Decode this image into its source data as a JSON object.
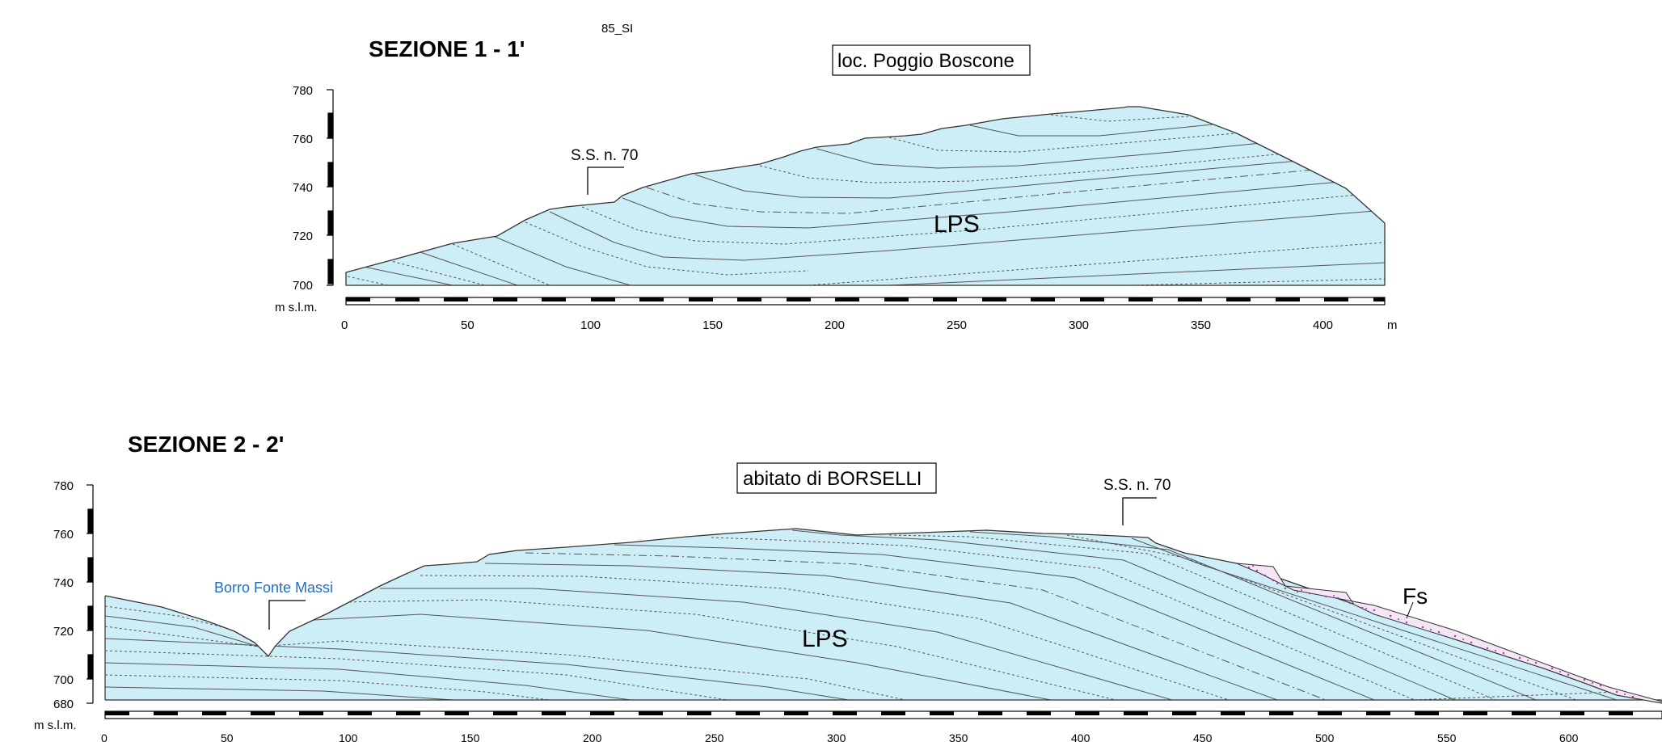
{
  "sheet_code": "85_SI",
  "sections": [
    {
      "title": "SEZIONE 1 - 1'",
      "locality": "loc. Poggio Boscone",
      "road_label": "S.S. n. 70",
      "unit_label": "LPS",
      "y_unit": "m s.l.m.",
      "x_unit": "m",
      "y_ticks": [
        "780",
        "760",
        "740",
        "720",
        "700"
      ],
      "x_ticks": [
        "0",
        "50",
        "100",
        "150",
        "200",
        "250",
        "300",
        "350",
        "400"
      ]
    },
    {
      "title": "SEZIONE 2 - 2'",
      "locality": "abitato di BORSELLI",
      "road_label": "S.S. n. 70",
      "stream_label": "Borro Fonte Massi",
      "unit_label": "LPS",
      "deposit_label": "Fs",
      "y_unit": "m s.l.m.",
      "y_ticks": [
        "780",
        "760",
        "740",
        "720",
        "700",
        "680"
      ],
      "x_ticks": [
        "0",
        "50",
        "100",
        "150",
        "200",
        "250",
        "300",
        "350",
        "400",
        "450",
        "500",
        "550",
        "600"
      ]
    }
  ],
  "colors": {
    "lps_fill": "#cdeef7",
    "fs_fill": "#f4e6f4",
    "fs_dots": "#b030c0",
    "stream_text": "#1a6fd0"
  }
}
